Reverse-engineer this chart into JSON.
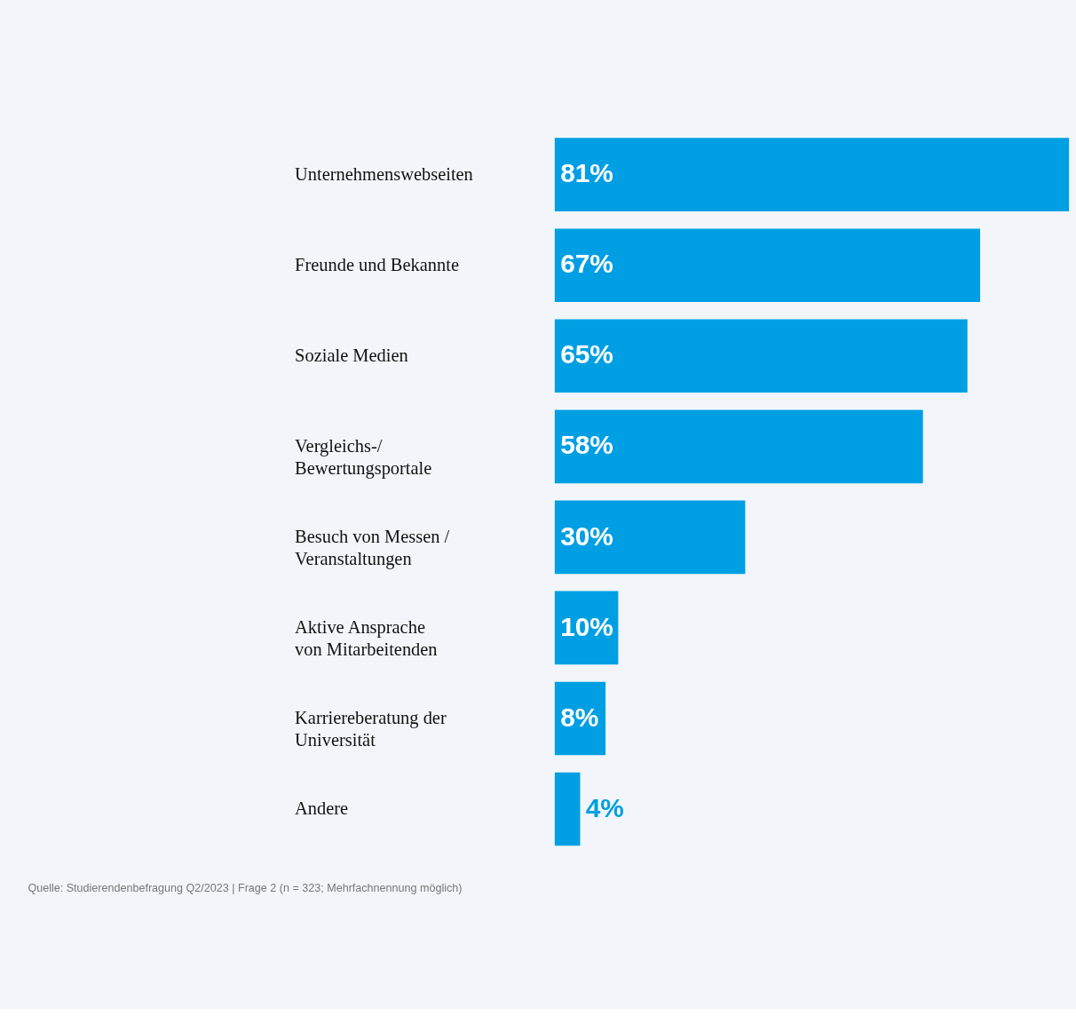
{
  "chart_data": {
    "type": "bar",
    "orientation": "horizontal",
    "categories": [
      "Unternehmenswebseiten",
      "Freunde und Bekannte",
      "Soziale Medien",
      "Vergleichs-/\nBewertungsportale",
      "Besuch von Messen /\nVeranstaltungen",
      "Aktive Ansprache\nvon Mitarbeitenden",
      "Karriereberatung der\nUniversität",
      "Andere"
    ],
    "values": [
      81,
      67,
      65,
      58,
      30,
      10,
      8,
      4
    ],
    "value_labels": [
      "81%",
      "67%",
      "65%",
      "58%",
      "30%",
      "10%",
      "8%",
      "4%"
    ],
    "color": "#009fe3",
    "tick_labels": "y",
    "grid": false,
    "annotations": [
      "Quelle: Studierendenbefragung Q2/2023 | Frage 2 (n = 323; Mehrfachnennung möglich)"
    ]
  }
}
